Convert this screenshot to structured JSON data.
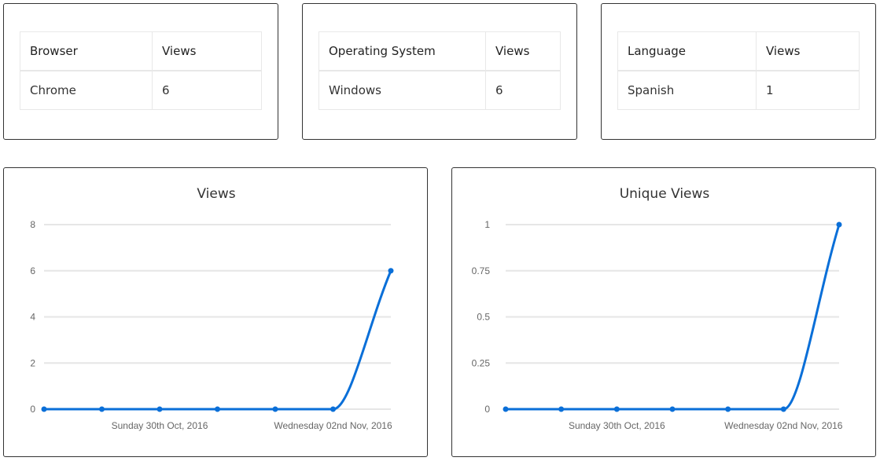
{
  "tables": [
    {
      "headers": [
        "Browser",
        "Views"
      ],
      "rows": [
        [
          "Chrome",
          "6"
        ]
      ]
    },
    {
      "headers": [
        "Operating System",
        "Views"
      ],
      "rows": [
        [
          "Windows",
          "6"
        ]
      ]
    },
    {
      "headers": [
        "Language",
        "Views"
      ],
      "rows": [
        [
          "Spanish",
          "1"
        ]
      ]
    }
  ],
  "chart_data": [
    {
      "type": "line",
      "title": "Views",
      "x_tick_labels": [
        "",
        "",
        "Sunday 30th Oct, 2016",
        "",
        "",
        "Wednesday 02nd Nov, 2016",
        ""
      ],
      "values": [
        0,
        0,
        0,
        0,
        0,
        0,
        6
      ],
      "ylim": [
        0,
        8
      ],
      "y_ticks": [
        "0",
        "2",
        "4",
        "6",
        "8"
      ],
      "y_tick_values": [
        0,
        2,
        4,
        6,
        8
      ],
      "grid": true,
      "color": "#0a6fd8"
    },
    {
      "type": "line",
      "title": "Unique Views",
      "x_tick_labels": [
        "",
        "",
        "Sunday 30th Oct, 2016",
        "",
        "",
        "Wednesday 02nd Nov, 2016",
        ""
      ],
      "values": [
        0,
        0,
        0,
        0,
        0,
        0,
        1
      ],
      "ylim": [
        0,
        1
      ],
      "y_ticks": [
        "0",
        "0.25",
        "0.5",
        "0.75",
        "1"
      ],
      "y_tick_values": [
        0,
        0.25,
        0.5,
        0.75,
        1
      ],
      "grid": true,
      "color": "#0a6fd8"
    }
  ]
}
